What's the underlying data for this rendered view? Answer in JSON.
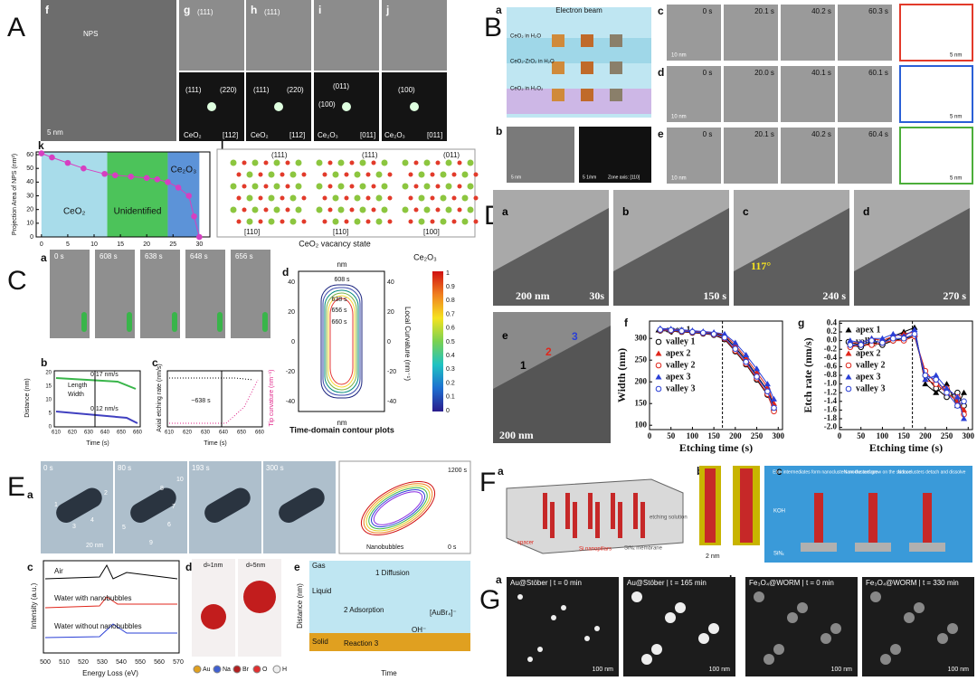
{
  "panel_A": {
    "label": "A",
    "sublabels": [
      "f",
      "g",
      "h",
      "i",
      "j",
      "k",
      "l"
    ],
    "image_labels": [
      "NPS",
      "5 nm",
      "(111)",
      "(111)",
      "(111)",
      "(220)",
      "(111)",
      "(220)",
      "(011)",
      "(100)",
      "(100)",
      "CeO₂",
      "[112]",
      "CeO₂",
      "[112]",
      "Ce₂O₃",
      "[011]",
      "Ce₂O₃",
      "[011]"
    ],
    "chart_k": {
      "type": "line",
      "ylabel": "Projection Area of NPS (nm²)",
      "x": [
        0,
        2,
        5,
        8,
        12,
        14,
        17,
        20,
        22,
        24,
        26,
        28,
        29,
        30
      ],
      "values": [
        61,
        58,
        54,
        50,
        46,
        45,
        44,
        43,
        42,
        40,
        36,
        30,
        15,
        0
      ],
      "color": "#d63fc1",
      "regions": [
        {
          "name": "CeO₂",
          "from": 0,
          "to": 12.5,
          "color": "#a8dcea"
        },
        {
          "name": "Unidentified",
          "from": 12.5,
          "to": 24,
          "color": "#4cc35a"
        },
        {
          "name": "Ce₂O₃",
          "from": 24,
          "to": 30,
          "color": "#5c93d8"
        }
      ],
      "xlim": [
        -1,
        32
      ],
      "ylim": [
        0,
        62
      ],
      "xticks": [
        0,
        5,
        10,
        15,
        20,
        25,
        30
      ],
      "yticks": [
        0,
        10,
        20,
        30,
        40,
        50,
        60
      ]
    },
    "lattice_labels": [
      "(111)",
      "(111)",
      "(011)",
      "[110]",
      "[110]",
      "[100]"
    ],
    "state_labels": [
      "CeO₂",
      "CeO₂ vacancy state",
      "Ce₂O₃"
    ]
  },
  "panel_B": {
    "label": "B",
    "sublabels": [
      "a",
      "b",
      "c",
      "d",
      "e"
    ],
    "schematic_labels": [
      "Electron beam",
      "CeO₂ in H₂O",
      "CeO₂-ZrO₂ in H₂O",
      "CeO₂ in H₂O₂"
    ],
    "b_labels": [
      "5 nm",
      "5 1/nm",
      "Zone axis: [110]"
    ],
    "times_c": [
      "0 s",
      "20.1 s",
      "40.2 s",
      "60.3 s"
    ],
    "times_d": [
      "0 s",
      "20.0 s",
      "40.1 s",
      "60.1 s"
    ],
    "times_e": [
      "0 s",
      "20.1 s",
      "40.2 s",
      "60.4 s"
    ],
    "scale_labels": [
      "10 nm",
      "10 nm",
      "10 nm",
      "5 nm",
      "5 nm",
      "5 nm"
    ]
  },
  "panel_C": {
    "label": "C",
    "sublabels": [
      "a",
      "b",
      "c",
      "d"
    ],
    "times": [
      "0 s",
      "608 s",
      "638 s",
      "648 s",
      "656 s"
    ],
    "scale": "20 nm",
    "b_texts": [
      "Distance (nm)",
      "Time (s)",
      "Length",
      "Width",
      "0.17 nm/s",
      "0.12 nm/s"
    ],
    "b_yticks": [
      "20",
      "15",
      "10",
      "5",
      "0"
    ],
    "b_xticks": [
      "610",
      "620",
      "630",
      "640",
      "650",
      "660"
    ],
    "c_texts": [
      "Axial etching rate (nm/s)",
      "Tip curvature (nm⁻¹)",
      "~638 s",
      "Time (s)"
    ],
    "c_xticks": [
      "610",
      "620",
      "630",
      "640",
      "650",
      "660"
    ],
    "d_texts": [
      "Time-domain contour plots",
      "Local Curvature (nm⁻¹)",
      "nm",
      "nm"
    ],
    "d_contours": [
      "608 s",
      "638 s",
      "656 s",
      "660 s"
    ],
    "d_ticks": [
      "40",
      "20",
      "0",
      "-20",
      "-40"
    ],
    "d_colorbar": [
      "1",
      "0.9",
      "0.8",
      "0.7",
      "0.6",
      "0.5",
      "0.4",
      "0.3",
      "0.2",
      "0.1",
      "0"
    ]
  },
  "panel_D": {
    "label": "D",
    "sublabels": [
      "a",
      "b",
      "c",
      "d",
      "e",
      "f",
      "g"
    ],
    "image_labels": [
      "200 nm",
      "30s",
      "150 s",
      "240 s",
      "270 s",
      "117°",
      "200 nm",
      "1",
      "2",
      "3"
    ],
    "chart_f": {
      "type": "line",
      "xlabel": "Etching time (s)",
      "ylabel": "Width (nm)",
      "x": [
        25,
        50,
        75,
        100,
        125,
        150,
        175,
        200,
        225,
        250,
        275,
        290
      ],
      "series": [
        {
          "name": "apex 1",
          "color": "#000000",
          "marker": "triangle",
          "values": [
            320,
            320,
            318,
            316,
            314,
            312,
            305,
            280,
            250,
            215,
            180,
            145
          ]
        },
        {
          "name": "valley 1",
          "color": "#000000",
          "marker": "circle",
          "values": [
            318,
            317,
            315,
            313,
            311,
            308,
            298,
            270,
            240,
            205,
            170,
            135
          ]
        },
        {
          "name": "apex 2",
          "color": "#e0261b",
          "marker": "triangle",
          "values": [
            322,
            321,
            319,
            317,
            315,
            313,
            308,
            285,
            255,
            222,
            188,
            150
          ]
        },
        {
          "name": "valley 2",
          "color": "#e0261b",
          "marker": "circle",
          "values": [
            319,
            318,
            316,
            314,
            312,
            309,
            300,
            272,
            242,
            208,
            172,
            132
          ]
        },
        {
          "name": "apex 3",
          "color": "#2a3fd6",
          "marker": "triangle",
          "values": [
            323,
            322,
            320,
            318,
            316,
            314,
            310,
            290,
            262,
            230,
            195,
            160
          ]
        },
        {
          "name": "valley 3",
          "color": "#2a3fd6",
          "marker": "circle",
          "values": [
            320,
            319,
            317,
            315,
            313,
            310,
            302,
            276,
            246,
            212,
            178,
            140
          ]
        }
      ],
      "xlim": [
        0,
        310
      ],
      "ylim": [
        90,
        340
      ],
      "xticks": [
        0,
        50,
        100,
        150,
        200,
        250,
        300
      ],
      "yticks": [
        100,
        150,
        200,
        250,
        300
      ],
      "vline": 170
    },
    "chart_g": {
      "type": "line",
      "xlabel": "Etching time (s)",
      "ylabel": "Etch rate (nm/s)",
      "x": [
        25,
        50,
        75,
        100,
        125,
        150,
        175,
        200,
        225,
        250,
        275,
        290
      ],
      "series": [
        {
          "name": "apex 1",
          "color": "#000000",
          "marker": "triangle",
          "values": [
            -0.05,
            -0.1,
            0.0,
            -0.05,
            0.1,
            0.2,
            0.3,
            -1.0,
            -1.2,
            -1.0,
            -1.5,
            -1.2
          ]
        },
        {
          "name": "valley 1",
          "color": "#000000",
          "marker": "circle",
          "values": [
            -0.1,
            -0.15,
            -0.05,
            -0.1,
            0.0,
            0.05,
            0.1,
            -0.8,
            -1.1,
            -1.3,
            -1.2,
            -1.5
          ]
        },
        {
          "name": "apex 2",
          "color": "#e0261b",
          "marker": "triangle",
          "values": [
            -0.05,
            -0.05,
            0.05,
            0.0,
            0.1,
            0.15,
            0.2,
            -0.9,
            -1.0,
            -1.2,
            -1.4,
            -1.6
          ]
        },
        {
          "name": "valley 2",
          "color": "#e0261b",
          "marker": "circle",
          "values": [
            -0.15,
            -0.1,
            -0.1,
            -0.05,
            0.0,
            0.0,
            0.1,
            -0.7,
            -1.0,
            -1.1,
            -1.3,
            -1.7
          ]
        },
        {
          "name": "apex 3",
          "color": "#2a3fd6",
          "marker": "triangle",
          "values": [
            0.0,
            -0.05,
            0.05,
            0.05,
            0.15,
            0.1,
            0.25,
            -0.9,
            -0.8,
            -1.1,
            -1.3,
            -1.8
          ]
        },
        {
          "name": "valley 3",
          "color": "#2a3fd6",
          "marker": "circle",
          "values": [
            -0.1,
            -0.1,
            0.0,
            -0.05,
            0.05,
            0.05,
            0.15,
            -0.8,
            -0.9,
            -1.2,
            -1.5,
            -1.4
          ]
        }
      ],
      "xlim": [
        0,
        310
      ],
      "ylim": [
        -2.05,
        0.45
      ],
      "xticks": [
        0,
        50,
        100,
        150,
        200,
        250,
        300
      ],
      "yticks": [
        0.4,
        0.2,
        {
          "value": 0,
          "label": "0.0"
        },
        -0.2,
        -0.4,
        -0.6,
        -0.8,
        {
          "value": -1,
          "label": "-1.0"
        },
        -1.2,
        -1.4,
        -1.6,
        -1.8,
        {
          "value": -2,
          "label": "-2.0"
        }
      ],
      "vline": 170
    }
  },
  "panel_E": {
    "label": "E",
    "sublabels": [
      "a",
      "b",
      "c",
      "d",
      "e"
    ],
    "times": [
      "0 s",
      "80 s",
      "193 s",
      "300 s"
    ],
    "scale": "20 nm",
    "numbers": [
      "1",
      "2",
      "3",
      "4",
      "5",
      "6",
      "7",
      "8",
      "9",
      "10"
    ],
    "b_texts": [
      "1200 s",
      "0 s",
      "Nanobubbles"
    ],
    "c_texts": [
      "Air",
      "Water with nanobubbles",
      "Water without nanobubbles",
      "Intensity (a.u.)",
      "Energy Loss (eV)"
    ],
    "c_xticks": [
      "500",
      "510",
      "520",
      "530",
      "540",
      "550",
      "560",
      "570"
    ],
    "d_texts": [
      "d≈1nm",
      "d≈5nm"
    ],
    "d_legend": [
      "Au",
      "Na",
      "Br",
      "O",
      "H"
    ],
    "e_texts": [
      "Gas",
      "Liquid",
      "Solid",
      "1 Diffusion",
      "2 Adsorption",
      "Reaction 3",
      "OH⁻",
      "[AuBr₄]⁻",
      "Distance (nm)",
      "Time"
    ]
  },
  "panel_F": {
    "label": "F",
    "sublabels": [
      "a",
      "b",
      "c"
    ],
    "a_texts": [
      "spacer",
      "Si nanopillars",
      "SiNₓ membrane",
      "etching solution"
    ],
    "b_texts": [
      "2 nm"
    ],
    "c_texts": [
      "Etch intermediates form nanoclusters on the surface",
      "Nanoclusters grow on the surface",
      "Nanoclusters detach and dissolve",
      "KOH",
      "SiNₓ"
    ]
  },
  "panel_G": {
    "label": "G",
    "sublabels": [
      "a",
      "b"
    ],
    "titles": [
      "Au@Stöber | t = 0 min",
      "Au@Stöber | t = 165 min",
      "Fe₃O₄@WORM | t = 0 min",
      "Fe₃O₄@WORM | t = 330 min"
    ],
    "scales": [
      "100 nm",
      "100 nm",
      "100 nm",
      "100 nm"
    ]
  }
}
